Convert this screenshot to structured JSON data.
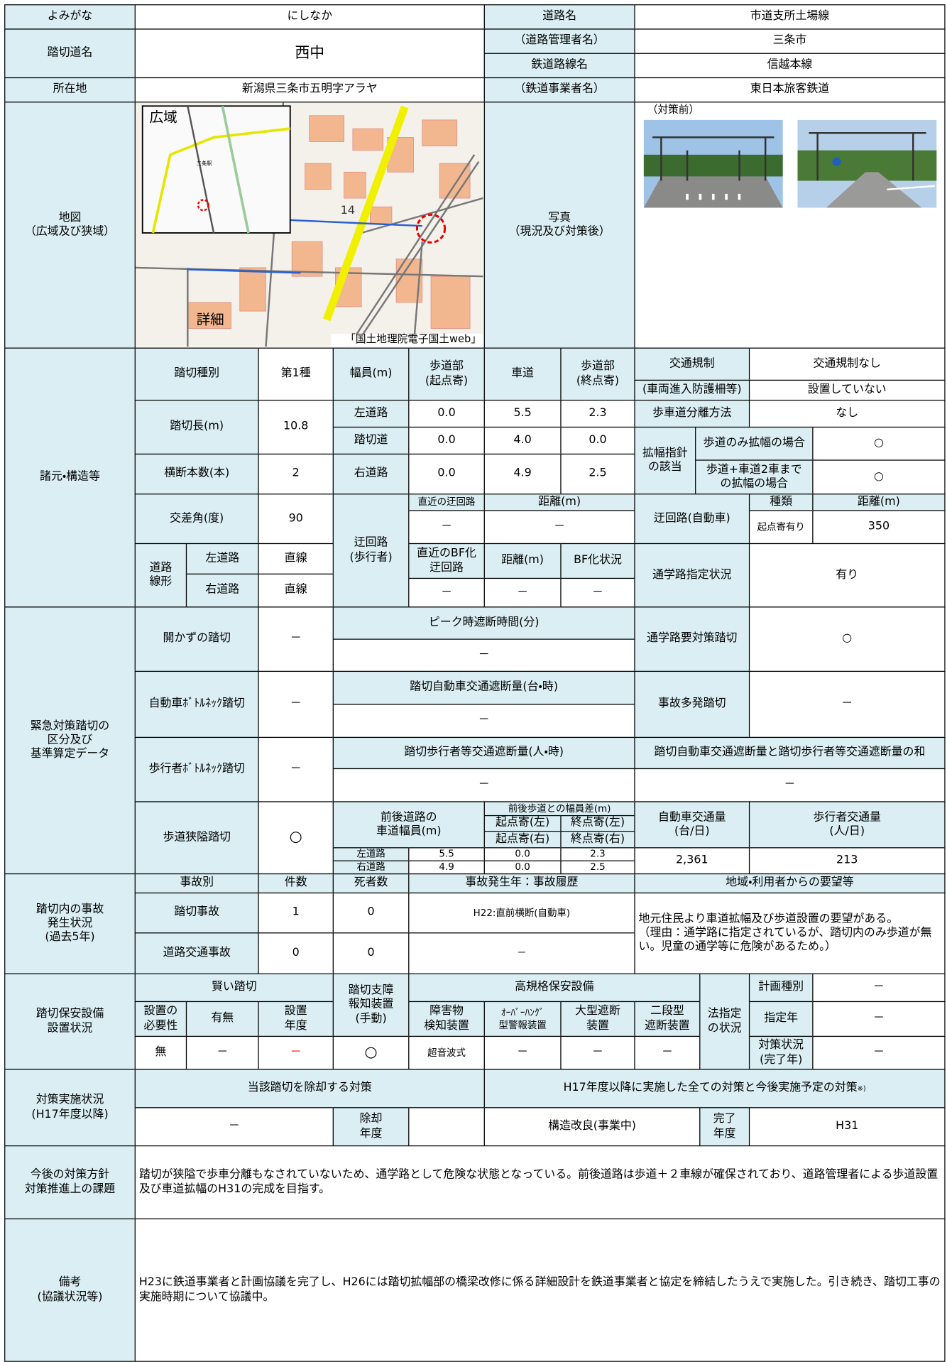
{
  "header": {
    "yomigana_label": "よみがな",
    "yomigana": "にしなか",
    "road_name_label": "道路名",
    "road_name": "市道支所土場線",
    "crossing_name_label": "踏切道名",
    "crossing_name": "西中",
    "road_manager_label": "（道路管理者名）",
    "road_manager": "三条市",
    "railway_line_label": "鉄道路線名",
    "railway_line": "信越本線",
    "location_label": "所在地",
    "location": "新潟県三条市五明字アラヤ",
    "railway_operator_label": "（鉄道事業者名）",
    "railway_operator": "東日本旅客鉄道"
  },
  "map": {
    "label": "地図\n（広域及び狭域）",
    "wide_label": "広域",
    "detail_label": "詳細",
    "source": "「国土地理院電子国土web」",
    "route_number": "14",
    "station": "三条駅"
  },
  "photo": {
    "label": "写真\n（現況及び対策後）",
    "before_label": "（対策前）"
  },
  "specs": {
    "section_label": "諸元・構造等",
    "crossing_type_label": "踏切種別",
    "crossing_type": "第1種",
    "width_label": "幅員(m)",
    "sidewalk_start_label": "歩道部\n(起点寄)",
    "roadway_label": "車道",
    "sidewalk_end_label": "歩道部\n(終点寄)",
    "traffic_regulation_label": "交通規制",
    "traffic_regulation": "交通規制なし",
    "guard_fence_label": "(車両進入防護柵等)",
    "guard_fence": "設置していない",
    "length_label": "踏切長(m)",
    "length": "10.8",
    "width_rows": [
      {
        "label": "左道路",
        "sidewalk_start": "0.0",
        "roadway": "5.5",
        "sidewalk_end": "2.3"
      },
      {
        "label": "踏切道",
        "sidewalk_start": "0.0",
        "roadway": "4.0",
        "sidewalk_end": "0.0"
      },
      {
        "label": "右道路",
        "sidewalk_start": "0.0",
        "roadway": "4.9",
        "sidewalk_end": "2.5"
      }
    ],
    "separation_label": "歩車道分離方法",
    "separation": "なし",
    "widening_label": "拡幅指針\nの該当",
    "widening_sidewalk_label": "歩道のみ拡幅の場合",
    "widening_sidewalk": "○",
    "widening_both_label": "歩道+車道2車まで\nの拡幅の場合",
    "widening_both": "○",
    "lanes_label": "横断本数(本)",
    "lanes": "2",
    "angle_label": "交差角(度)",
    "angle": "90",
    "detour_ped_label": "迂回路\n(歩行者)",
    "nearest_detour_label": "直近の迂回路",
    "distance_label": "距離(m)",
    "nearest_detour": "－",
    "nearest_detour_distance": "－",
    "bf_detour_label": "直近のBF化\n迂回路",
    "bf_distance_label": "距離(m)",
    "bf_status_label": "BF化状況",
    "bf_detour": "－",
    "bf_distance": "－",
    "bf_status": "－",
    "detour_car_label": "迂回路(自動車)",
    "detour_car_type_label": "種類",
    "detour_car_distance_label": "距離(m)",
    "detour_car_type": "起点寄有り",
    "detour_car_distance": "350",
    "alignment_label": "道路\n線形",
    "alignment_left_label": "左道路",
    "alignment_left": "直線",
    "alignment_right_label": "右道路",
    "alignment_right": "直線",
    "school_route_label": "通学路指定状況",
    "school_route": "有り"
  },
  "emergency": {
    "section_label": "緊急対策踏切の\n区分及び\n基準算定データ",
    "unopened_label": "開かずの踏切",
    "unopened": "－",
    "peak_label": "ピーク時遮断時間(分)",
    "peak": "－",
    "school_label": "通学路要対策踏切",
    "school": "○",
    "car_bottleneck_label": "自動車ﾎﾞﾄﾙﾈｯｸ踏切",
    "car_bottleneck": "－",
    "car_block_label": "踏切自動車交通遮断量(台・時)",
    "car_block": "－",
    "accident_label": "事故多発踏切",
    "accident": "－",
    "ped_bottleneck_label": "歩行者ﾎﾞﾄﾙﾈｯｸ踏切",
    "ped_bottleneck": "－",
    "ped_block_label": "踏切歩行者等交通遮断量(人・時)",
    "ped_block": "－",
    "sum_label": "踏切自動車交通遮断量と踏切歩行者等交通遮断量の和",
    "sum": "－",
    "narrow_label": "歩道狭隘踏切",
    "narrow": "○",
    "road_width_label": "前後道路の\n車道幅員(m)",
    "width_diff_label": "前後歩道との幅員差(m)",
    "start_left_label": "起点寄(左)",
    "end_left_label": "終点寄(左)",
    "start_right_label": "起点寄(右)",
    "end_right_label": "終点寄(右)",
    "rows": [
      {
        "label": "左道路",
        "road_width": "5.5",
        "start": "0.0",
        "end": "2.3"
      },
      {
        "label": "右道路",
        "road_width": "4.9",
        "start": "0.0",
        "end": "2.5"
      }
    ],
    "car_volume_label": "自動車交通量\n(台/日)",
    "ped_volume_label": "歩行者交通量\n(人/日)",
    "car_volume": "2,361",
    "ped_volume": "213"
  },
  "accidents": {
    "section_label": "踏切内の事故\n発生状況\n(過去5年)",
    "type_label": "事故別",
    "count_label": "件数",
    "deaths_label": "死者数",
    "history_label": "事故発生年：事故履歴",
    "requests_label": "地域・利用者からの要望等",
    "rows": [
      {
        "type": "踏切事故",
        "count": "1",
        "deaths": "0",
        "history": "H22:直前横断(自動車)"
      },
      {
        "type": "道路交通事故",
        "count": "0",
        "deaths": "0",
        "history": "－"
      }
    ],
    "requests": "地元住民より車道拡幅及び歩道設置の要望がある。\n（理由：通学路に指定されているが、踏切内のみ歩道が無い。児童の通学等に危険があるため。）"
  },
  "safety": {
    "section_label": "踏切保安設備\n設置状況",
    "smart_label": "賢い踏切",
    "need_label": "設置の\n必要性",
    "presence_label": "有無",
    "year_label": "設置\n年度",
    "need": "無",
    "presence": "－",
    "year": "－",
    "manual_label": "踏切支障\n報知装置\n(手動)",
    "manual": "○",
    "high_label": "高規格保安設備",
    "obstacle_label": "障害物\n検知装置",
    "overhang_label": "ｵｰﾊﾞｰﾊﾝｸﾞ\n型警報装置",
    "large_gate_label": "大型遮断\n装置",
    "two_stage_label": "二段型\n遮断装置",
    "obstacle": "超音波式",
    "overhang": "－",
    "large_gate": "－",
    "two_stage": "－",
    "legal_label": "法指定\nの状況",
    "plan_type_label": "計画種別",
    "plan_type": "－",
    "designated_year_label": "指定年",
    "designated_year": "－",
    "status_label": "対策状況\n(完了年)",
    "status": "－"
  },
  "measures": {
    "section_label": "対策実施状況\n(H17年度以降)",
    "removal_label": "当該踏切を除却する対策",
    "all_label": "H17年度以降に実施した全ての対策と今後実施予定の対策",
    "all_note": "※)",
    "removal": "－",
    "removal_year_label": "除却\n年度",
    "measure": "構造改良(事業中)",
    "completion_label": "完了\n年度",
    "completion": "H31"
  },
  "policy": {
    "label": "今後の対策方針\n対策推進上の課題",
    "text": "踏切が狭隘で歩車分離もなされていないため、通学路として危険な状態となっている。前後道路は歩道＋２車線が確保されており、道路管理者による歩道設置及び車道拡幅のH31の完成を目指す。"
  },
  "remarks": {
    "label": "備考\n(協議状況等)",
    "text": "H23に鉄道事業者と計画協議を完了し、H26には踏切拡幅部の橋梁改修に係る詳細設計を鉄道事業者と協定を締結したうえで実施した。引き続き、踏切工事の実施時期について協議中。"
  }
}
